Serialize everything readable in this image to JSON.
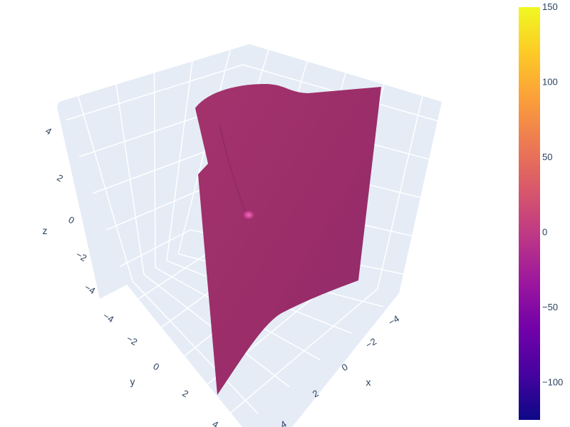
{
  "chart_data": {
    "type": "surface",
    "axes": {
      "x": {
        "title": "x",
        "range": [
          -5,
          5
        ],
        "ticks": [
          "−4",
          "−2",
          "0",
          "2",
          "4"
        ]
      },
      "y": {
        "title": "y",
        "range": [
          -5,
          5
        ],
        "ticks": [
          "−4",
          "−2",
          "0",
          "2",
          "4"
        ]
      },
      "z": {
        "title": "z",
        "range": [
          -5,
          5
        ],
        "ticks": [
          "−4",
          "−2",
          "0",
          "2",
          "4"
        ]
      }
    },
    "grid": true,
    "colorbar": {
      "range": [
        -125,
        150
      ],
      "ticks": [
        "150",
        "100",
        "50",
        "0",
        "−50",
        "−100"
      ],
      "colorscale": [
        "#0d0887",
        "#46039f",
        "#7201a8",
        "#9c179e",
        "#bd3786",
        "#d8576b",
        "#ed7953",
        "#fb9f3a",
        "#fdca26",
        "#f0f921"
      ]
    },
    "surface": {
      "dominant_value": 10,
      "description_value_range": [
        -1,
        20
      ],
      "color": "#a02f6c",
      "highlight_color": "#e04ba8"
    },
    "colors": {
      "background": "#ffffff",
      "scene_bg": "#e5ecf6",
      "gridline": "#ffffff",
      "text": "#2a3f5f"
    }
  }
}
